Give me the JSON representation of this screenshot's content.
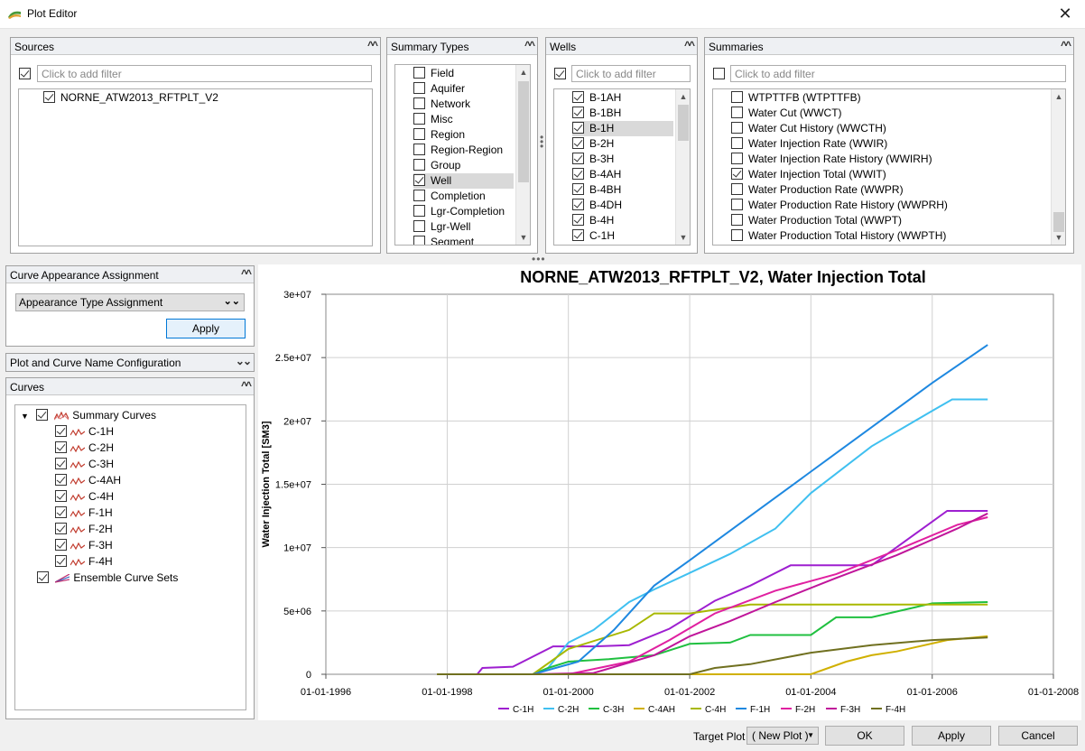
{
  "window": {
    "title": "Plot Editor",
    "close_glyph": "✕"
  },
  "sources": {
    "header": "Sources",
    "filter_placeholder": "Click to add filter",
    "items": [
      {
        "label": "NORNE_ATW2013_RFTPLT_V2",
        "checked": true
      }
    ]
  },
  "summary_types": {
    "header": "Summary Types",
    "items": [
      {
        "label": "Field",
        "checked": false
      },
      {
        "label": "Aquifer",
        "checked": false
      },
      {
        "label": "Network",
        "checked": false
      },
      {
        "label": "Misc",
        "checked": false
      },
      {
        "label": "Region",
        "checked": false
      },
      {
        "label": "Region-Region",
        "checked": false
      },
      {
        "label": "Group",
        "checked": false
      },
      {
        "label": "Well",
        "checked": true,
        "selected": true
      },
      {
        "label": "Completion",
        "checked": false
      },
      {
        "label": "Lgr-Completion",
        "checked": false
      },
      {
        "label": "Lgr-Well",
        "checked": false
      },
      {
        "label": "Segment",
        "checked": false
      }
    ]
  },
  "wells": {
    "header": "Wells",
    "filter_placeholder": "Click to add filter",
    "items": [
      {
        "label": "B-1AH",
        "checked": true
      },
      {
        "label": "B-1BH",
        "checked": true
      },
      {
        "label": "B-1H",
        "checked": true,
        "selected": true
      },
      {
        "label": "B-2H",
        "checked": true
      },
      {
        "label": "B-3H",
        "checked": true
      },
      {
        "label": "B-4AH",
        "checked": true
      },
      {
        "label": "B-4BH",
        "checked": true
      },
      {
        "label": "B-4DH",
        "checked": true
      },
      {
        "label": "B-4H",
        "checked": true
      },
      {
        "label": "C-1H",
        "checked": true
      }
    ]
  },
  "summaries": {
    "header": "Summaries",
    "filter_placeholder": "Click to add filter",
    "items": [
      {
        "label": "WTPTTFB (WTPTTFB)",
        "checked": false
      },
      {
        "label": "Water Cut (WWCT)",
        "checked": false
      },
      {
        "label": "Water Cut History (WWCTH)",
        "checked": false
      },
      {
        "label": "Water Injection Rate (WWIR)",
        "checked": false
      },
      {
        "label": "Water Injection Rate History (WWIRH)",
        "checked": false
      },
      {
        "label": "Water Injection Total (WWIT)",
        "checked": true
      },
      {
        "label": "Water Production Rate (WWPR)",
        "checked": false
      },
      {
        "label": "Water Production Rate History (WWPRH)",
        "checked": false
      },
      {
        "label": "Water Production Total (WWPT)",
        "checked": false
      },
      {
        "label": "Water Production Total History (WWPTH)",
        "checked": false
      }
    ]
  },
  "curve_appearance": {
    "header": "Curve Appearance Assignment",
    "dropdown_value": "Appearance Type Assignment",
    "apply_label": "Apply"
  },
  "name_config": {
    "header": "Plot and Curve Name Configuration"
  },
  "curves": {
    "header": "Curves",
    "root_label": "Summary Curves",
    "children": [
      "C-1H",
      "C-2H",
      "C-3H",
      "C-4AH",
      "C-4H",
      "F-1H",
      "F-2H",
      "F-3H",
      "F-4H"
    ],
    "ensemble_label": "Ensemble Curve Sets"
  },
  "bottom": {
    "target_plot_label": "Target Plot",
    "target_plot_value": "( New Plot )",
    "ok_label": "OK",
    "apply_label": "Apply",
    "cancel_label": "Cancel"
  },
  "chart_data": {
    "type": "line",
    "title": "NORNE_ATW2013_RFTPLT_V2, Water Injection Total",
    "ylabel": "Water Injection Total [SM3]",
    "xlabel": "",
    "xlim": [
      "1996-01-01",
      "2008-01-01"
    ],
    "ylim": [
      0,
      30000000
    ],
    "x_ticks": [
      "01-01-1996",
      "01-01-1998",
      "01-01-2000",
      "01-01-2002",
      "01-01-2004",
      "01-01-2006",
      "01-01-2008"
    ],
    "y_ticks": [
      "0",
      "5e+06",
      "1e+07",
      "1.5e+07",
      "2e+07",
      "2.5e+07",
      "3e+07"
    ],
    "grid": true,
    "legend_position": "bottom",
    "series": [
      {
        "name": "C-1H",
        "color": "#9e1fd0",
        "points": [
          [
            "1997-11-01",
            0
          ],
          [
            "1998-07-01",
            0
          ],
          [
            "1998-08-01",
            500000
          ],
          [
            "1999-02-01",
            600000
          ],
          [
            "1999-10-01",
            2200000
          ],
          [
            "2000-06-01",
            2200000
          ],
          [
            "2001-01-01",
            2300000
          ],
          [
            "2001-09-01",
            3600000
          ],
          [
            "2002-06-01",
            5800000
          ],
          [
            "2003-01-01",
            7000000
          ],
          [
            "2003-09-01",
            8600000
          ],
          [
            "2005-01-01",
            8600000
          ],
          [
            "2006-04-01",
            12900000
          ],
          [
            "2006-12-01",
            12900000
          ]
        ]
      },
      {
        "name": "C-2H",
        "color": "#40c0f0",
        "points": [
          [
            "1999-06-01",
            0
          ],
          [
            "1999-09-01",
            500000
          ],
          [
            "2000-01-01",
            2500000
          ],
          [
            "2000-06-01",
            3500000
          ],
          [
            "2001-01-01",
            5700000
          ],
          [
            "2001-06-01",
            6700000
          ],
          [
            "2002-01-01",
            8000000
          ],
          [
            "2002-09-01",
            9500000
          ],
          [
            "2003-06-01",
            11500000
          ],
          [
            "2004-01-01",
            14300000
          ],
          [
            "2005-01-01",
            18000000
          ],
          [
            "2006-01-01",
            20800000
          ],
          [
            "2006-05-01",
            21700000
          ],
          [
            "2006-12-01",
            21700000
          ]
        ]
      },
      {
        "name": "C-3H",
        "color": "#20c040",
        "points": [
          [
            "1999-06-01",
            0
          ],
          [
            "1999-09-01",
            500000
          ],
          [
            "2000-01-01",
            1000000
          ],
          [
            "2000-09-01",
            1200000
          ],
          [
            "2001-06-01",
            1500000
          ],
          [
            "2002-01-01",
            2400000
          ],
          [
            "2002-09-01",
            2500000
          ],
          [
            "2003-01-01",
            3100000
          ],
          [
            "2004-01-01",
            3100000
          ],
          [
            "2004-06-01",
            4500000
          ],
          [
            "2005-01-01",
            4500000
          ],
          [
            "2006-01-01",
            5600000
          ],
          [
            "2006-12-01",
            5700000
          ]
        ]
      },
      {
        "name": "C-4AH",
        "color": "#d0b000",
        "points": [
          [
            "1997-11-01",
            0
          ],
          [
            "2004-01-01",
            0
          ],
          [
            "2004-08-01",
            1000000
          ],
          [
            "2005-01-01",
            1500000
          ],
          [
            "2005-06-01",
            1800000
          ],
          [
            "2006-04-01",
            2700000
          ],
          [
            "2006-12-01",
            3000000
          ]
        ]
      },
      {
        "name": "C-4H",
        "color": "#a8b800",
        "points": [
          [
            "1997-11-01",
            0
          ],
          [
            "1999-06-01",
            0
          ],
          [
            "2000-01-01",
            2000000
          ],
          [
            "2001-01-01",
            3500000
          ],
          [
            "2001-06-01",
            4800000
          ],
          [
            "2002-01-01",
            4800000
          ],
          [
            "2003-01-01",
            5500000
          ],
          [
            "2006-12-01",
            5500000
          ]
        ]
      },
      {
        "name": "F-1H",
        "color": "#1e88e0",
        "points": [
          [
            "1999-06-01",
            0
          ],
          [
            "2000-03-01",
            1000000
          ],
          [
            "2000-10-01",
            3500000
          ],
          [
            "2001-06-01",
            7000000
          ],
          [
            "2002-01-01",
            9000000
          ],
          [
            "2003-01-01",
            12500000
          ],
          [
            "2004-01-01",
            16000000
          ],
          [
            "2005-01-01",
            19500000
          ],
          [
            "2006-01-01",
            23000000
          ],
          [
            "2006-12-01",
            26000000
          ]
        ]
      },
      {
        "name": "F-2H",
        "color": "#e020a0",
        "points": [
          [
            "2000-01-01",
            0
          ],
          [
            "2001-01-01",
            1000000
          ],
          [
            "2001-09-01",
            2700000
          ],
          [
            "2002-06-01",
            4800000
          ],
          [
            "2003-06-01",
            6600000
          ],
          [
            "2004-06-01",
            7900000
          ],
          [
            "2005-06-01",
            9800000
          ],
          [
            "2006-06-01",
            11800000
          ],
          [
            "2006-12-01",
            12400000
          ]
        ]
      },
      {
        "name": "F-3H",
        "color": "#c0159a",
        "points": [
          [
            "1999-06-01",
            0
          ],
          [
            "2000-06-01",
            100000
          ],
          [
            "2001-06-01",
            1500000
          ],
          [
            "2002-01-01",
            3000000
          ],
          [
            "2002-09-01",
            4200000
          ],
          [
            "2003-06-01",
            5700000
          ],
          [
            "2004-06-01",
            7600000
          ],
          [
            "2005-06-01",
            9400000
          ],
          [
            "2006-06-01",
            11500000
          ],
          [
            "2006-12-01",
            12700000
          ]
        ]
      },
      {
        "name": "F-4H",
        "color": "#707020",
        "points": [
          [
            "1997-11-01",
            0
          ],
          [
            "2002-01-01",
            0
          ],
          [
            "2002-06-01",
            500000
          ],
          [
            "2003-01-01",
            800000
          ],
          [
            "2004-01-01",
            1700000
          ],
          [
            "2005-01-01",
            2300000
          ],
          [
            "2006-01-01",
            2700000
          ],
          [
            "2006-12-01",
            2900000
          ]
        ]
      }
    ]
  }
}
